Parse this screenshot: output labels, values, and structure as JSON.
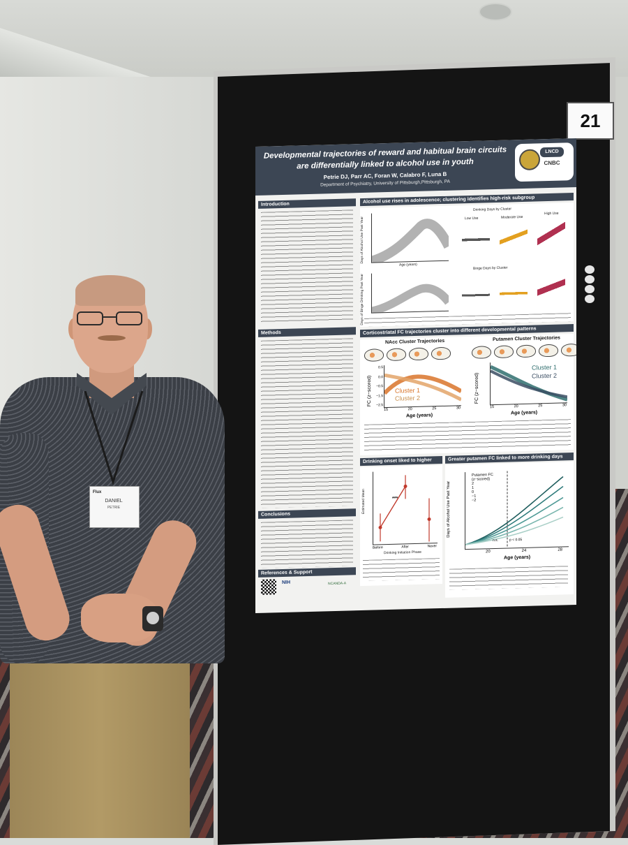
{
  "scene": {
    "board_number": "21"
  },
  "poster": {
    "title_line1": "Developmental trajectories of reward and habitual brain circuits",
    "title_line2": "are differentially linked to alcohol use in youth",
    "authors": "Petrie DJ, Parr AC, Foran W, Calabro F, Luna B",
    "department": "Department of Psychiatry, University of Pittsburgh,Pittsburgh, PA",
    "logos": [
      "LNCD",
      "CNBC"
    ],
    "sections": {
      "introduction": "Introduction",
      "methods": "Methods",
      "conclusions": "Conclusions",
      "references": "References & Support"
    },
    "panels": {
      "alcohol_use": "Alcohol use rises in adolescence; clustering identifies high-risk subgroup",
      "corticostriatal": "Corticostriatal FC trajectories cluster into different developmental patterns",
      "drinking_onset": "Drinking onset liked to higher NAcc FC",
      "putamen": "Greater putamen FC linked to more drinking days"
    },
    "alcohol_plot": {
      "ylabel_top": "Days of Alcohol Use Past Year",
      "ylabel_bottom": "Days of Binge Drinking Past Year",
      "xlabel": "Age (years)",
      "cluster_title_top": "Drinking Days by Cluster",
      "cluster_title_bottom": "Binge Days by Cluster",
      "clusters": [
        "Low Use",
        "Moderate Use",
        "High Use"
      ]
    },
    "nacc_plot": {
      "title": "NAcc Cluster Trajectories",
      "ylabel": "FC (z−scored)",
      "xlabel": "Age (years)",
      "legend": [
        "Cluster 1",
        "Cluster 2"
      ],
      "x_ticks": [
        "15",
        "20",
        "25",
        "30"
      ],
      "y_ticks": [
        "0.5",
        "0.0",
        "−0.5",
        "−1.5",
        "−2.5"
      ]
    },
    "putamen_plot": {
      "title": "Putamen Cluster Trajectories",
      "ylabel": "FC (z−scored)",
      "xlabel": "Age (years)",
      "legend": [
        "Cluster 1",
        "Cluster 2"
      ],
      "x_ticks": [
        "15",
        "20",
        "25",
        "30"
      ]
    },
    "onset_plot": {
      "ylabel": "Estimated Mean",
      "xlabel": "Drinking Initiation Phase",
      "categories": [
        "Before",
        "After",
        "Never"
      ],
      "significance": "***"
    },
    "putamen_drinking_plot": {
      "legend_title": "Putamen FC (z−scored)",
      "legend_items": [
        "2",
        "1",
        "0",
        "−1",
        "−2"
      ],
      "ylabel": "Days of Alcohol Use Past Year",
      "xlabel": "Age (years)",
      "x_ticks": [
        "20",
        "24",
        "28"
      ],
      "annotation_ns": "n.s.",
      "annotation_p": "p < 0.05"
    },
    "funding": [
      "NIH",
      "NCANDA-A"
    ]
  },
  "badge": {
    "name": "DANIEL",
    "surname": "PETRIE",
    "logo": "Flux"
  }
}
